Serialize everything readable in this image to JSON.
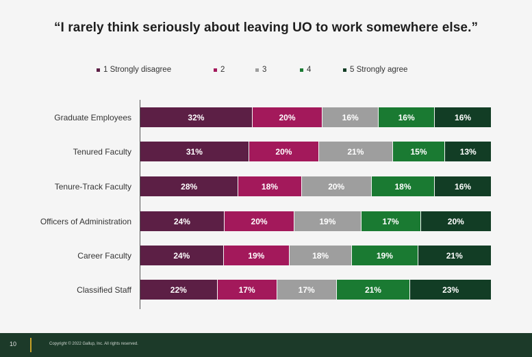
{
  "slide": {
    "title": "“I rarely think seriously about leaving UO to work somewhere else.”",
    "page_number": "10",
    "copyright": "Copyright © 2022 Gallup, Inc. All rights reserved."
  },
  "chart_data": {
    "type": "bar",
    "orientation": "horizontal",
    "stacked": true,
    "percent_stacked": true,
    "title": "“I rarely think seriously about leaving UO to work somewhere else.”",
    "categories": [
      "Graduate Employees",
      "Tenured Faculty",
      "Tenure-Track Faculty",
      "Officers of Administration",
      "Career Faculty",
      "Classified Staff"
    ],
    "legend_position": "top",
    "grid": false,
    "series": [
      {
        "name": "1 Strongly disagree",
        "color": "#5c1f45",
        "values": [
          32,
          31,
          28,
          24,
          24,
          22
        ],
        "labels": [
          "32%",
          "31%",
          "28%",
          "24%",
          "24%",
          "22%"
        ]
      },
      {
        "name": "2",
        "color": "#a3195b",
        "values": [
          20,
          20,
          18,
          20,
          19,
          17
        ],
        "labels": [
          "20%",
          "20%",
          "18%",
          "20%",
          "19%",
          "17%"
        ]
      },
      {
        "name": "3",
        "color": "#9e9e9e",
        "values": [
          16,
          21,
          20,
          19,
          18,
          17
        ],
        "labels": [
          "16%",
          "21%",
          "20%",
          "19%",
          "18%",
          "17%"
        ]
      },
      {
        "name": "4",
        "color": "#1a7a32",
        "values": [
          16,
          15,
          18,
          17,
          19,
          21
        ],
        "labels": [
          "16%",
          "15%",
          "18%",
          "17%",
          "19%",
          "21%"
        ]
      },
      {
        "name": "5 Strongly agree",
        "color": "#123d25",
        "values": [
          16,
          13,
          16,
          20,
          21,
          23
        ],
        "labels": [
          "16%",
          "13%",
          "16%",
          "20%",
          "21%",
          "23%"
        ]
      }
    ]
  }
}
